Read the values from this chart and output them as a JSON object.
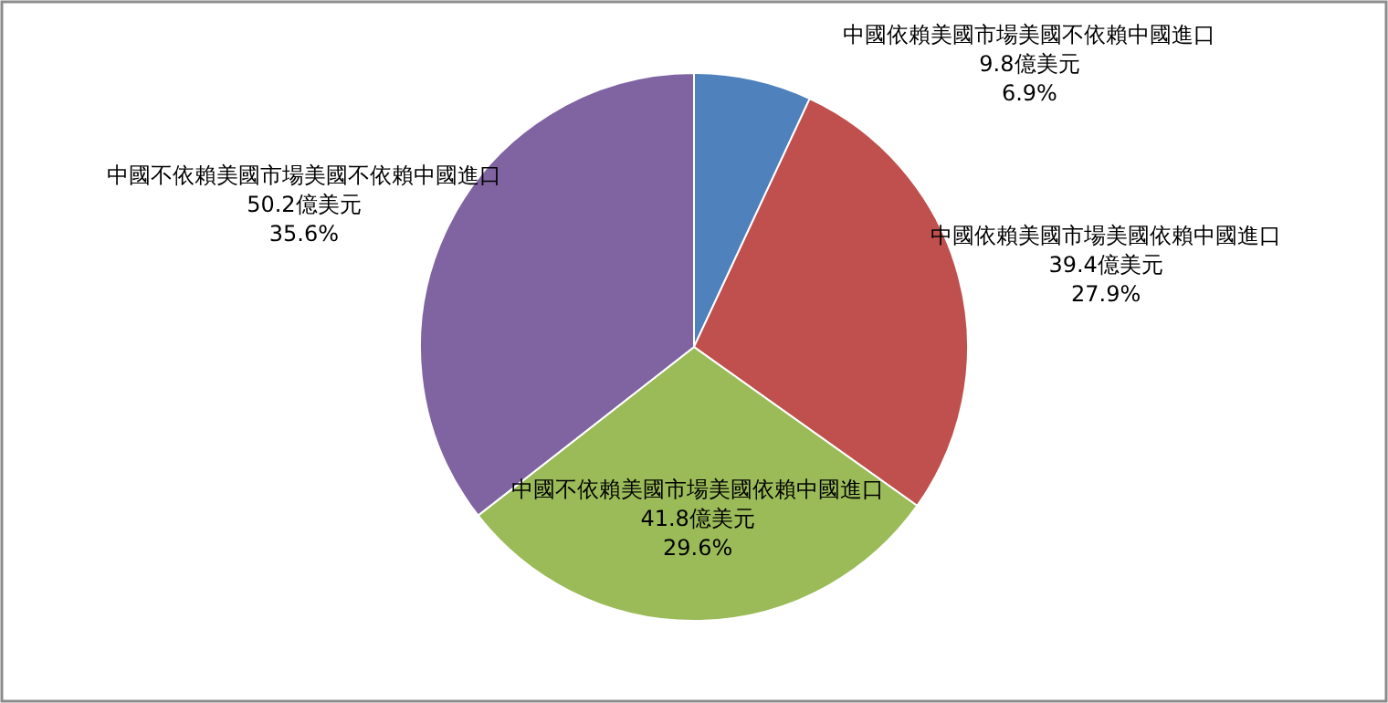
{
  "chart_data": {
    "type": "pie",
    "categories": [
      "中國依賴美國市場美國不依賴中國進口",
      "中國依賴美國市場美國依賴中國進口",
      "中國不依賴美國市場美國依賴中國進口",
      "中國不依賴美國市場美國不依賴中國進口"
    ],
    "values": [
      9.8,
      39.4,
      41.8,
      50.2
    ],
    "value_labels": [
      "9.8億美元\n6.9%",
      "39.4億美元\n27.9%",
      "41.8億美元\n29.6%",
      "50.2億美元\n35.6%"
    ],
    "colors": [
      "#4f81bd",
      "#c0504d",
      "#9bbb59",
      "#8064a2"
    ]
  }
}
